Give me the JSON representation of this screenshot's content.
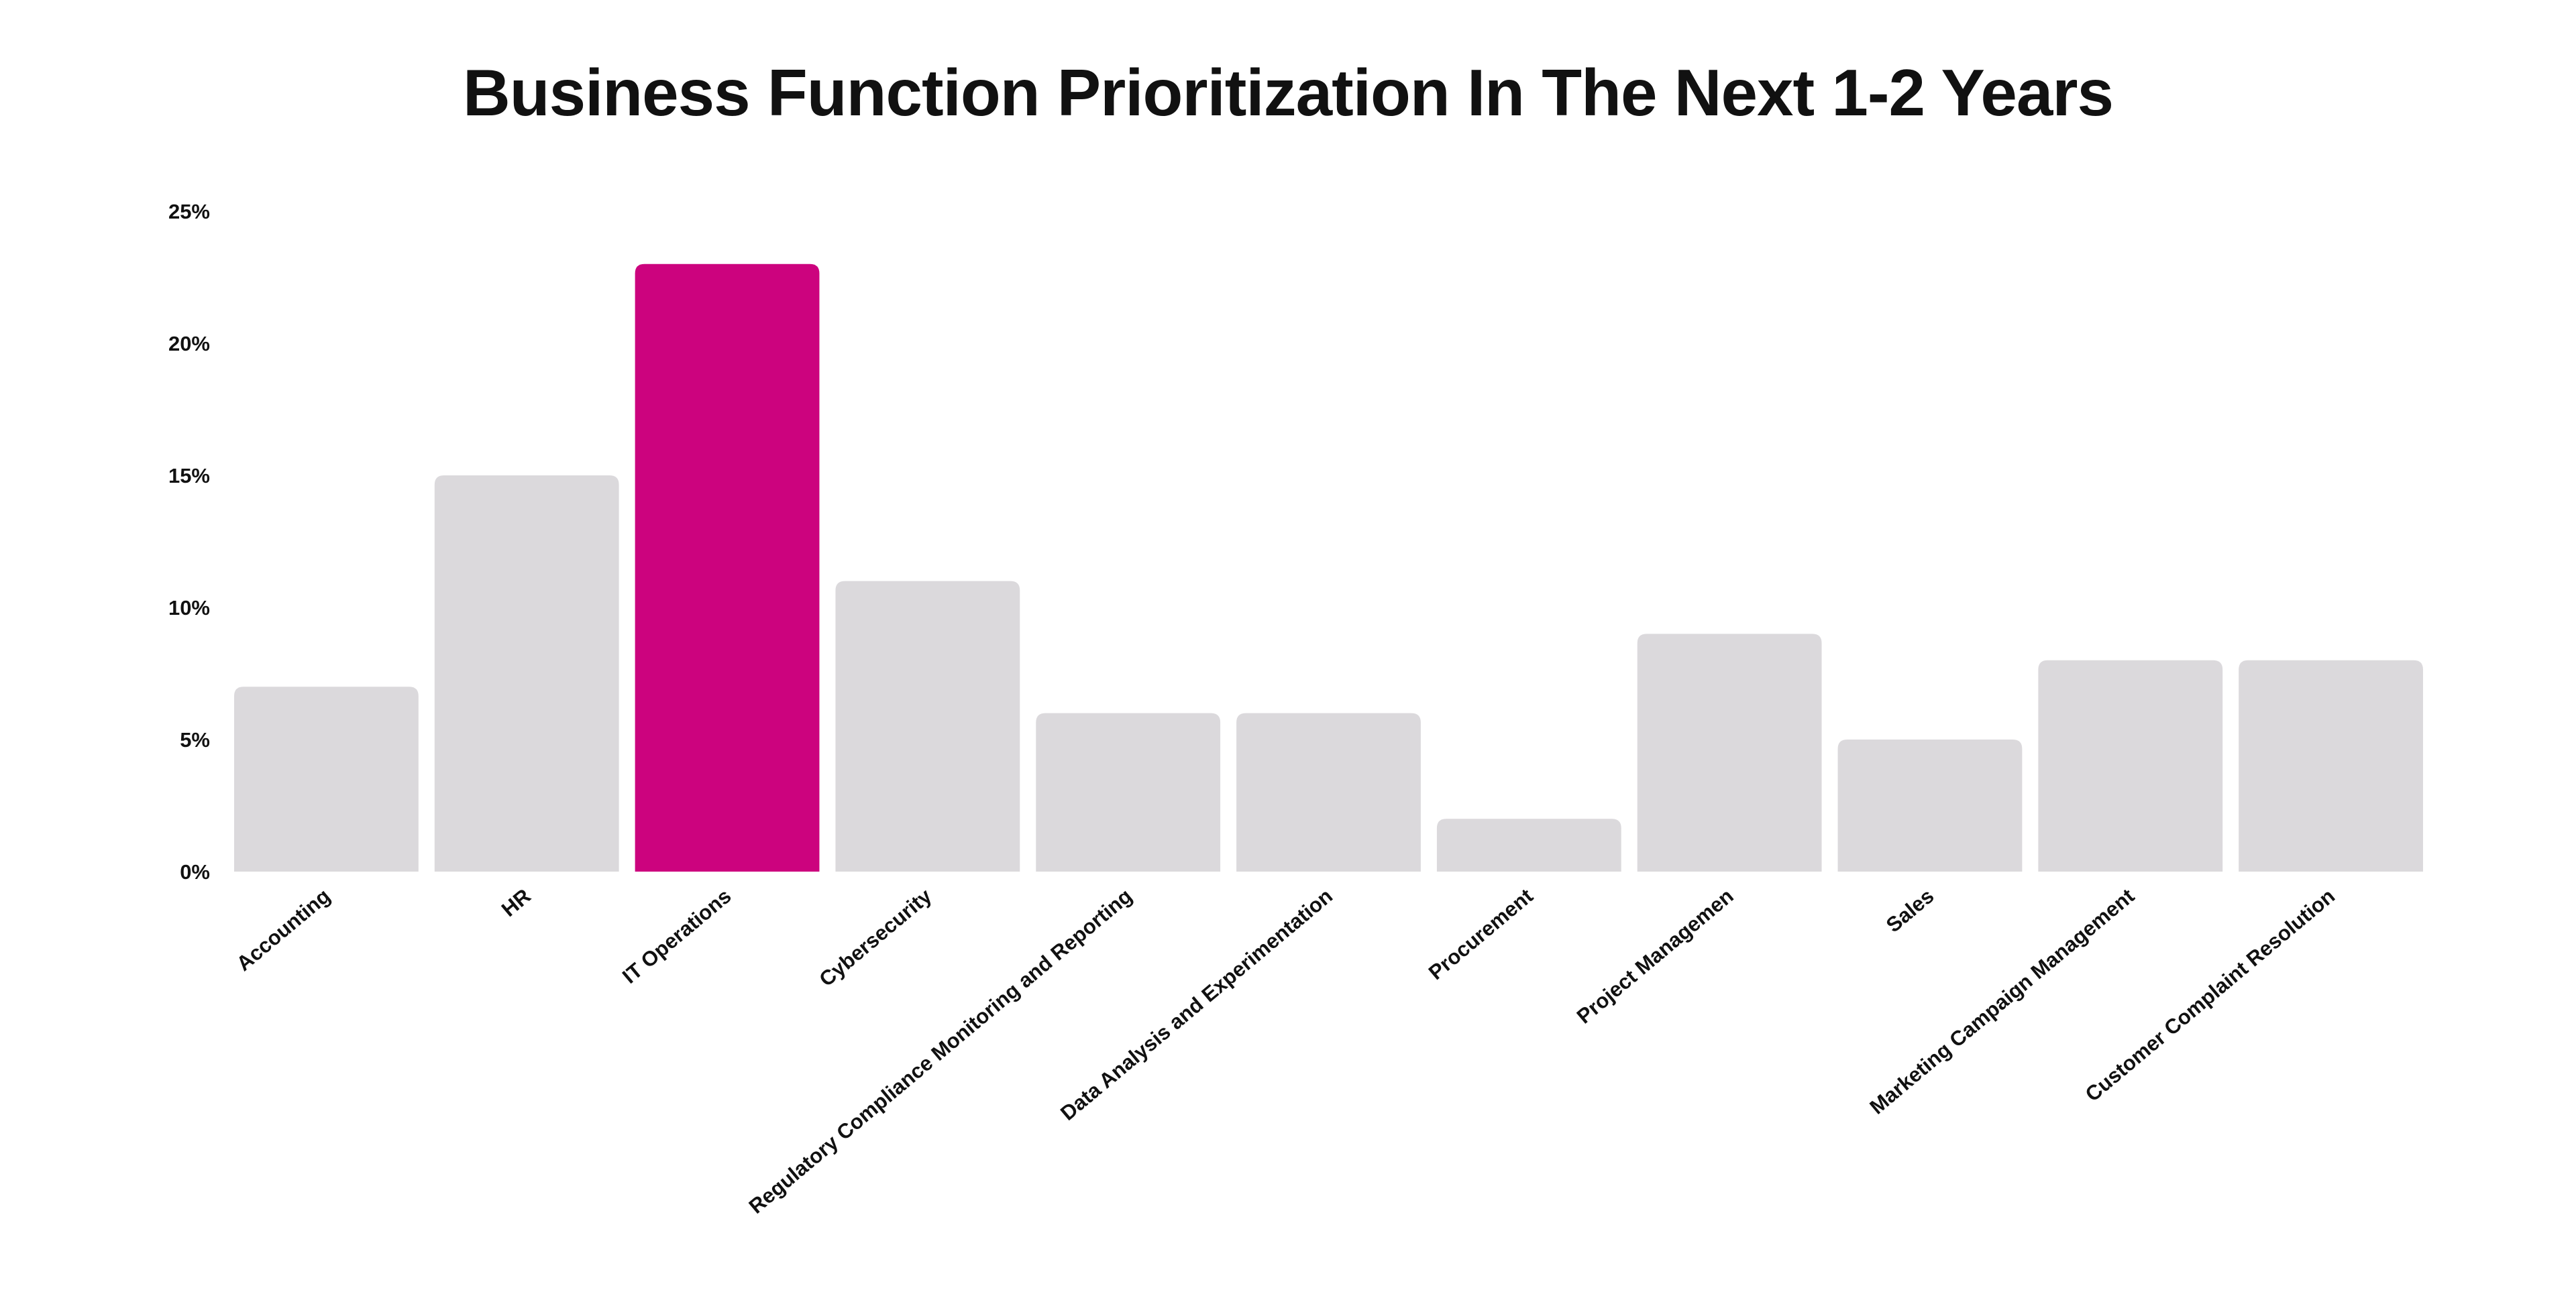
{
  "chart_data": {
    "type": "bar",
    "title": "Business Function Prioritization In The Next 1-2 Years",
    "xlabel": "",
    "ylabel": "",
    "ylim": [
      0,
      25
    ],
    "yticks": [
      0,
      5,
      10,
      15,
      20,
      25
    ],
    "ytick_labels": [
      "0%",
      "5%",
      "10%",
      "15%",
      "20%",
      "25%"
    ],
    "grid": false,
    "legend": "none",
    "categories": [
      "Accounting",
      "HR",
      "IT Operations",
      "Cybersecurity",
      "Regulatory Compliance Monitoring and Reporting",
      "Data Analysis and Experimentation",
      "Procurement",
      "Project Managemen",
      "Sales",
      "Marketing Campaign Management",
      "Customer Complaint Resolution"
    ],
    "values": [
      7,
      15,
      23,
      11,
      6,
      6,
      2,
      9,
      5,
      8,
      8
    ],
    "highlight_index": 2,
    "colors": {
      "bar": "#dbd9dc",
      "highlight": "#cc037e",
      "text": "#111111"
    }
  }
}
